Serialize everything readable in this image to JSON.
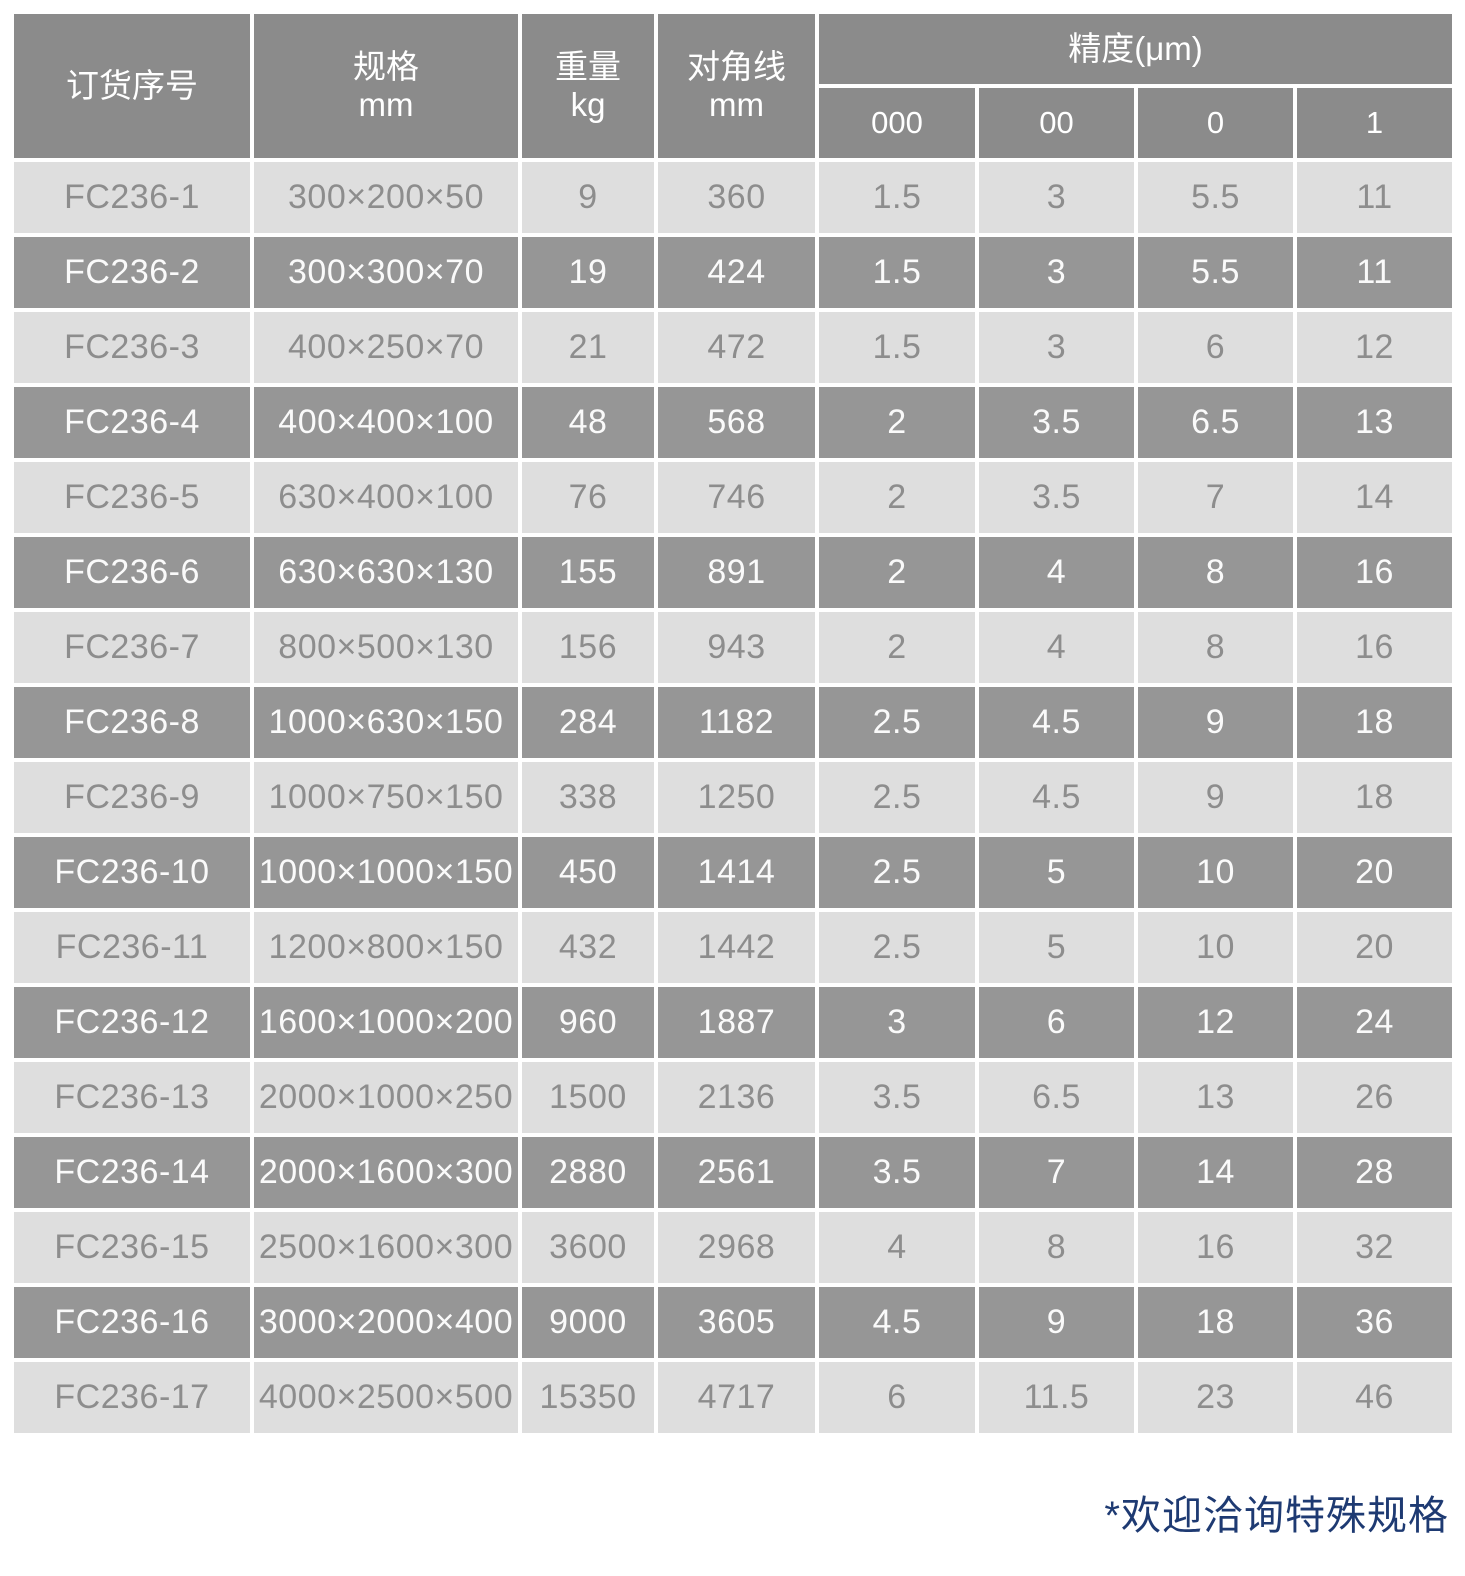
{
  "table": {
    "headers": {
      "order_no": "订货序号",
      "spec_line1": "规格",
      "spec_line2": "mm",
      "weight_line1": "重量",
      "weight_line2": "kg",
      "diagonal_line1": "对角线",
      "diagonal_line2": "mm",
      "precision_group": "精度(μm)",
      "precision_sub": [
        "000",
        "00",
        "0",
        "1"
      ]
    },
    "rows": [
      [
        "FC236-1",
        "300×200×50",
        "9",
        "360",
        "1.5",
        "3",
        "5.5",
        "11"
      ],
      [
        "FC236-2",
        "300×300×70",
        "19",
        "424",
        "1.5",
        "3",
        "5.5",
        "11"
      ],
      [
        "FC236-3",
        "400×250×70",
        "21",
        "472",
        "1.5",
        "3",
        "6",
        "12"
      ],
      [
        "FC236-4",
        "400×400×100",
        "48",
        "568",
        "2",
        "3.5",
        "6.5",
        "13"
      ],
      [
        "FC236-5",
        "630×400×100",
        "76",
        "746",
        "2",
        "3.5",
        "7",
        "14"
      ],
      [
        "FC236-6",
        "630×630×130",
        "155",
        "891",
        "2",
        "4",
        "8",
        "16"
      ],
      [
        "FC236-7",
        "800×500×130",
        "156",
        "943",
        "2",
        "4",
        "8",
        "16"
      ],
      [
        "FC236-8",
        "1000×630×150",
        "284",
        "1182",
        "2.5",
        "4.5",
        "9",
        "18"
      ],
      [
        "FC236-9",
        "1000×750×150",
        "338",
        "1250",
        "2.5",
        "4.5",
        "9",
        "18"
      ],
      [
        "FC236-10",
        "1000×1000×150",
        "450",
        "1414",
        "2.5",
        "5",
        "10",
        "20"
      ],
      [
        "FC236-11",
        "1200×800×150",
        "432",
        "1442",
        "2.5",
        "5",
        "10",
        "20"
      ],
      [
        "FC236-12",
        "1600×1000×200",
        "960",
        "1887",
        "3",
        "6",
        "12",
        "24"
      ],
      [
        "FC236-13",
        "2000×1000×250",
        "1500",
        "2136",
        "3.5",
        "6.5",
        "13",
        "26"
      ],
      [
        "FC236-14",
        "2000×1600×300",
        "2880",
        "2561",
        "3.5",
        "7",
        "14",
        "28"
      ],
      [
        "FC236-15",
        "2500×1600×300",
        "3600",
        "2968",
        "4",
        "8",
        "16",
        "32"
      ],
      [
        "FC236-16",
        "3000×2000×400",
        "9000",
        "3605",
        "4.5",
        "9",
        "18",
        "36"
      ],
      [
        "FC236-17",
        "4000×2500×500",
        "15350",
        "4717",
        "6",
        "11.5",
        "23",
        "46"
      ]
    ]
  },
  "footer": {
    "note": "*欢迎洽询特殊规格"
  },
  "colors": {
    "header_bg": "#8b8b8b",
    "dark_row_bg": "#969696",
    "light_row_bg": "#dedede",
    "header_text": "#ffffff",
    "dark_row_text": "#fafafa",
    "light_row_text": "#8d8d8d",
    "footer_text": "#1e3a72"
  }
}
